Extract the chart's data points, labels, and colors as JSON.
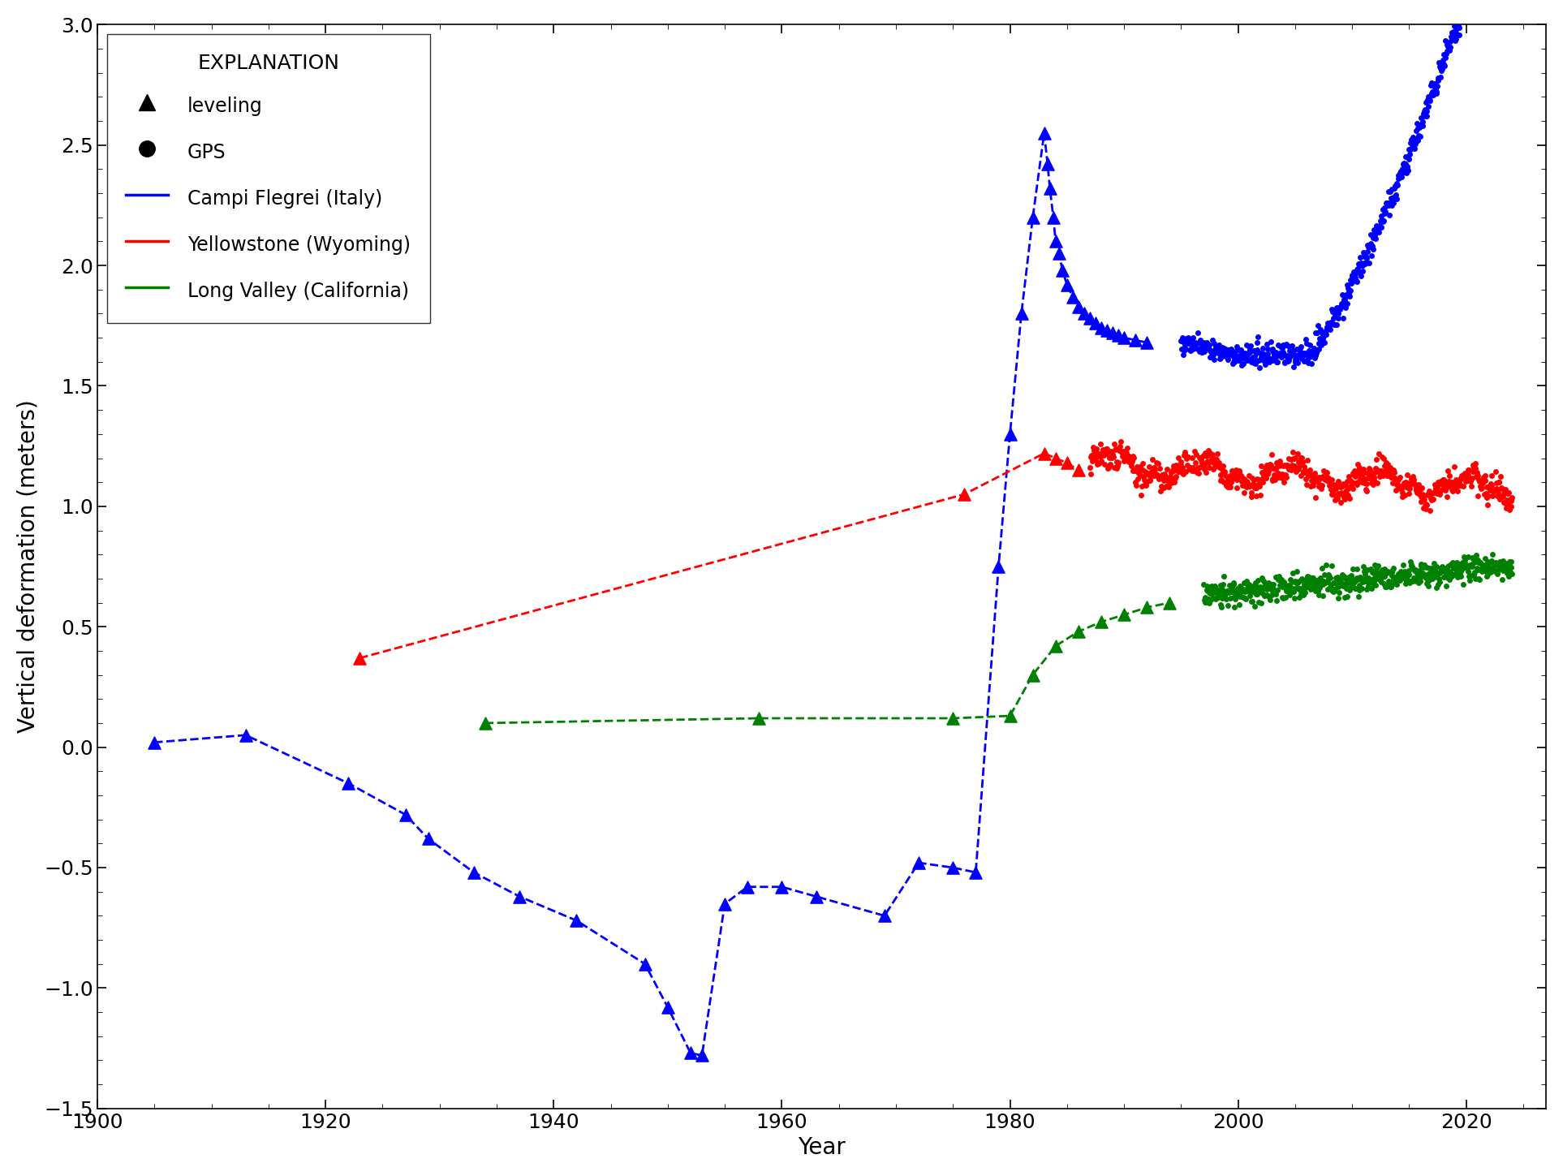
{
  "xlabel": "Year",
  "ylabel": "Vertical deformation (meters)",
  "xlim": [
    1900,
    2027
  ],
  "ylim": [
    -1.5,
    3.0
  ],
  "yticks": [
    -1.5,
    -1.0,
    -0.5,
    0.0,
    0.5,
    1.0,
    1.5,
    2.0,
    2.5,
    3.0
  ],
  "xticks": [
    1900,
    1920,
    1940,
    1960,
    1980,
    2000,
    2020
  ],
  "blue_color": "#0000FF",
  "red_color": "#FF0000",
  "green_color": "#008000",
  "black_color": "#000000",
  "campi_leveling_x": [
    1905,
    1913,
    1922,
    1927,
    1929,
    1933,
    1937,
    1942,
    1948,
    1950,
    1952,
    1953,
    1955,
    1957,
    1960,
    1963,
    1969,
    1972,
    1975,
    1977,
    1979,
    1980,
    1981,
    1982,
    1983,
    1983.3,
    1983.5,
    1983.8,
    1984,
    1984.3,
    1984.6,
    1985,
    1985.5,
    1986,
    1986.5,
    1987,
    1987.5,
    1988,
    1988.5,
    1989,
    1989.5,
    1990,
    1991,
    1992
  ],
  "campi_leveling_y": [
    0.02,
    0.05,
    -0.15,
    -0.28,
    -0.38,
    -0.52,
    -0.62,
    -0.72,
    -0.9,
    -1.08,
    -1.27,
    -1.28,
    -0.65,
    -0.58,
    -0.58,
    -0.62,
    -0.7,
    -0.48,
    -0.5,
    -0.52,
    0.75,
    1.3,
    1.8,
    2.2,
    2.55,
    2.42,
    2.32,
    2.2,
    2.1,
    2.05,
    1.98,
    1.92,
    1.87,
    1.83,
    1.8,
    1.78,
    1.76,
    1.74,
    1.73,
    1.72,
    1.71,
    1.7,
    1.69,
    1.68
  ],
  "yellowstone_leveling_x": [
    1923,
    1976,
    1983,
    1984,
    1985,
    1986
  ],
  "yellowstone_leveling_y": [
    0.37,
    1.05,
    1.22,
    1.2,
    1.18,
    1.15
  ],
  "longvalley_leveling_x": [
    1934,
    1958,
    1975,
    1980,
    1982,
    1984,
    1986,
    1988,
    1990,
    1992,
    1994
  ],
  "longvalley_leveling_y": [
    0.1,
    0.12,
    0.12,
    0.13,
    0.3,
    0.42,
    0.48,
    0.52,
    0.55,
    0.58,
    0.6
  ],
  "legend_title": "EXPLANATION",
  "legend_fontsize": 17,
  "axis_fontsize": 20,
  "tick_fontsize": 18
}
